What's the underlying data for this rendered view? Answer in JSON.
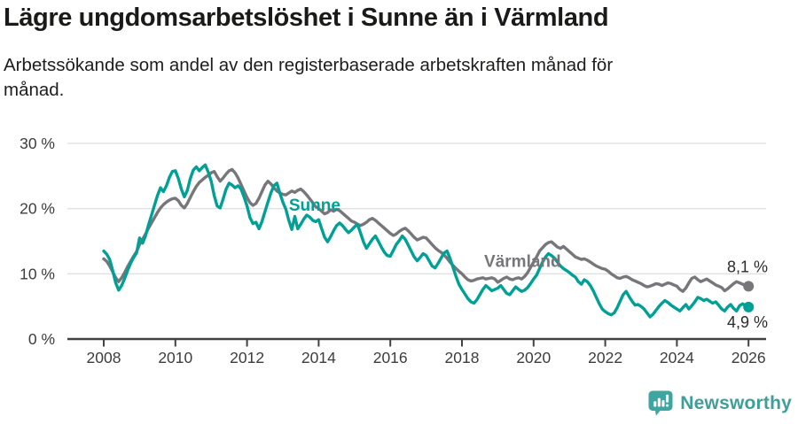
{
  "header": {
    "title": "Lägre ungdomsarbetslöshet i Sunne än i Värmland",
    "subtitle_lines": [
      "Arbetssökande som andel av den registerbaserade arbetskraften månad för",
      "månad."
    ]
  },
  "footer": {
    "brand": "Newsworthy"
  },
  "colors": {
    "sunne": "#00a096",
    "varmland": "#76767b",
    "grid": "#e0e0e0",
    "axis": "#414141",
    "tick_label": "#3c3c3c",
    "title_text": "#1a1a18",
    "logo_teal": "#3fa5a0"
  },
  "chart_data": {
    "type": "line",
    "title": "Lägre ungdomsarbetslöshet i Sunne än i Värmland",
    "subtitle": "Arbetssökande som andel av den registerbaserade arbetskraften månad för månad.",
    "unit": "%",
    "grid": "horizontal",
    "legend_position": "inline-labels",
    "x_start": 2008,
    "x_step": 0.0833333,
    "xlim": [
      2007.5,
      2026.5
    ],
    "ylim": [
      0,
      30
    ],
    "x_ticks": [
      2008,
      2010,
      2012,
      2014,
      2016,
      2018,
      2020,
      2022,
      2024,
      2026
    ],
    "y_ticks": [
      0,
      10,
      20,
      30
    ],
    "y_tick_suffix": " %",
    "series": [
      {
        "name": "Värmland",
        "color": "#76767b",
        "end_label": "8,1 %",
        "end_label_side": "above",
        "label_pos": {
          "x": 2018.62,
          "y": 12.0
        },
        "values": [
          12.3,
          11.9,
          11.2,
          10.3,
          9.4,
          8.8,
          9.4,
          10.2,
          11.1,
          11.9,
          12.7,
          13.4,
          14.5,
          15.3,
          16.1,
          17.0,
          17.8,
          18.6,
          19.4,
          20.1,
          20.6,
          21.0,
          21.3,
          21.5,
          21.6,
          21.2,
          20.5,
          20.1,
          20.8,
          21.7,
          22.6,
          23.4,
          24.0,
          24.4,
          24.8,
          25.1,
          25.5,
          25.7,
          24.9,
          24.2,
          24.7,
          25.3,
          25.8,
          26.0,
          25.5,
          24.7,
          23.7,
          22.7,
          21.7,
          20.9,
          20.5,
          20.8,
          21.6,
          22.6,
          23.6,
          24.2,
          23.8,
          23.2,
          22.7,
          22.4,
          22.2,
          22.1,
          22.4,
          22.7,
          22.5,
          22.8,
          23.0,
          22.6,
          22.1,
          21.5,
          20.9,
          20.3,
          20.0,
          19.6,
          19.2,
          19.4,
          19.8,
          19.6,
          19.9,
          19.7,
          19.3,
          18.9,
          18.5,
          18.1,
          17.9,
          17.6,
          17.4,
          17.6,
          17.9,
          18.3,
          18.5,
          18.2,
          17.8,
          17.4,
          17.0,
          16.6,
          16.2,
          15.9,
          16.1,
          16.5,
          16.8,
          17.0,
          16.6,
          16.1,
          15.6,
          15.2,
          15.4,
          15.6,
          15.5,
          15.0,
          14.5,
          14.0,
          13.6,
          13.3,
          12.9,
          12.4,
          11.8,
          11.3,
          10.8,
          10.4,
          10.0,
          9.5,
          9.1,
          8.9,
          9.0,
          9.2,
          9.3,
          9.4,
          9.2,
          9.3,
          9.4,
          9.2,
          8.7,
          9.0,
          9.3,
          9.5,
          9.2,
          9.1,
          9.3,
          9.4,
          9.2,
          9.6,
          10.2,
          11.0,
          11.8,
          12.6,
          13.5,
          14.0,
          14.5,
          14.8,
          14.9,
          14.5,
          14.1,
          13.9,
          14.2,
          13.8,
          13.4,
          13.0,
          12.6,
          12.4,
          12.2,
          12.3,
          12.1,
          11.8,
          11.5,
          11.2,
          11.0,
          10.8,
          10.7,
          10.4,
          10.0,
          9.7,
          9.4,
          9.3,
          9.5,
          9.6,
          9.4,
          9.1,
          8.9,
          8.7,
          8.5,
          8.2,
          8.0,
          8.1,
          8.3,
          8.5,
          8.4,
          8.2,
          8.4,
          8.6,
          8.5,
          8.3,
          8.1,
          7.6,
          7.3,
          7.8,
          8.6,
          9.3,
          9.5,
          9.1,
          8.8,
          9.0,
          9.2,
          8.9,
          8.6,
          8.3,
          8.1,
          7.9,
          7.4,
          7.7,
          8.1,
          8.5,
          8.8,
          8.6,
          8.4,
          8.2,
          8.1
        ]
      },
      {
        "name": "Sunne",
        "color": "#00a096",
        "end_label": "4,9 %",
        "end_label_side": "below",
        "label_pos": {
          "x": 2013.17,
          "y": 20.6
        },
        "values": [
          13.5,
          13.0,
          12.2,
          10.5,
          8.6,
          7.5,
          8.2,
          9.3,
          10.5,
          11.6,
          12.5,
          13.2,
          15.5,
          14.7,
          15.8,
          17.5,
          19.0,
          20.5,
          22.0,
          23.2,
          22.6,
          23.5,
          24.8,
          25.7,
          25.8,
          24.6,
          23.0,
          21.8,
          22.8,
          24.6,
          25.9,
          26.4,
          25.8,
          26.3,
          26.7,
          25.6,
          24.2,
          22.0,
          20.4,
          20.1,
          21.5,
          23.0,
          23.9,
          23.6,
          23.2,
          23.5,
          23.0,
          21.8,
          20.4,
          18.6,
          17.7,
          17.9,
          16.9,
          18.0,
          19.5,
          21.0,
          22.4,
          23.5,
          23.9,
          22.4,
          21.0,
          19.9,
          18.2,
          16.8,
          18.8,
          16.9,
          17.6,
          18.4,
          19.0,
          18.7,
          18.2,
          18.0,
          18.3,
          16.9,
          15.6,
          14.9,
          15.7,
          16.6,
          17.4,
          17.8,
          17.4,
          16.8,
          16.3,
          16.7,
          17.2,
          17.6,
          16.3,
          14.9,
          13.9,
          14.6,
          15.3,
          15.8,
          15.0,
          14.1,
          13.3,
          12.8,
          12.7,
          13.6,
          14.5,
          15.1,
          15.8,
          15.3,
          14.4,
          13.5,
          12.6,
          12.0,
          12.5,
          13.1,
          12.8,
          12.0,
          11.2,
          10.9,
          11.6,
          12.4,
          13.2,
          13.5,
          12.4,
          11.0,
          9.6,
          8.4,
          7.6,
          6.9,
          6.2,
          5.7,
          5.5,
          6.0,
          6.8,
          7.6,
          8.2,
          7.8,
          7.4,
          7.6,
          7.8,
          8.2,
          7.6,
          7.0,
          6.8,
          7.4,
          8.0,
          7.6,
          7.3,
          7.5,
          7.9,
          8.5,
          9.2,
          9.8,
          10.8,
          11.8,
          12.6,
          13.1,
          12.8,
          12.4,
          11.8,
          11.2,
          10.8,
          10.5,
          10.2,
          9.8,
          9.5,
          8.8,
          8.4,
          9.1,
          8.8,
          8.2,
          7.4,
          6.4,
          5.4,
          4.6,
          4.2,
          3.9,
          3.7,
          4.0,
          4.8,
          5.8,
          6.8,
          7.3,
          6.5,
          5.8,
          5.2,
          5.3,
          5.0,
          4.6,
          4.0,
          3.4,
          3.8,
          4.4,
          5.0,
          5.5,
          5.9,
          5.6,
          5.2,
          4.9,
          4.6,
          4.3,
          4.8,
          5.3,
          4.6,
          5.1,
          5.7,
          6.4,
          6.2,
          5.9,
          6.1,
          5.8,
          5.5,
          5.7,
          5.2,
          4.6,
          4.3,
          4.9,
          5.3,
          4.7,
          4.3,
          5.1,
          5.4,
          5.1,
          4.9
        ]
      }
    ]
  }
}
